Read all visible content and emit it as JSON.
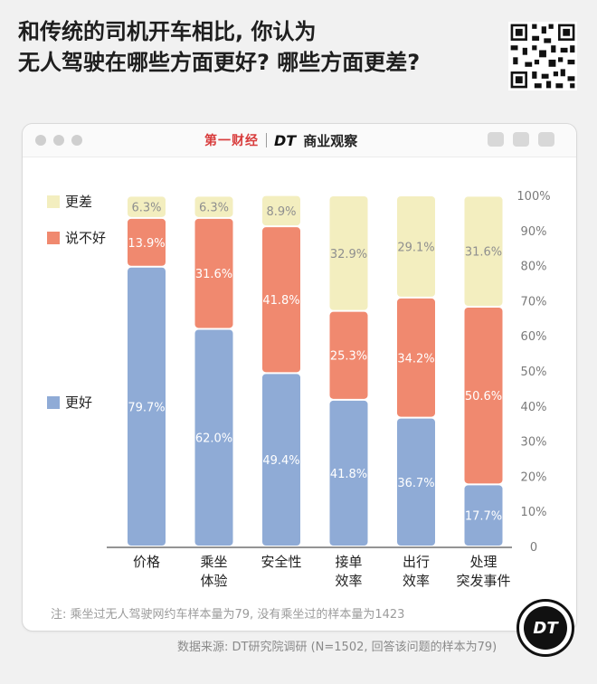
{
  "title_line1": "和传统的司机开车相比, 你认为",
  "title_line2": "无人驾驶在哪些方面更好? 哪些方面更差?",
  "brand": {
    "left": "第一财经",
    "dt": "DT",
    "name": "商业观察"
  },
  "footnote": "注: 乘坐过无人驾驶网约车样本量为79, 没有乘坐过的样本量为1423",
  "source": "数据来源: DT研究院调研 (N=1502, 回答该问题的样本为79)",
  "logo_text": "DT",
  "colors": {
    "better": "#8fabd6",
    "neutral": "#f0896f",
    "worse": "#f3eebf",
    "label": "#ffffff",
    "worse_label": "#8f8f8f"
  },
  "chart_data": {
    "type": "bar",
    "stacked": true,
    "categories": [
      [
        "价格"
      ],
      [
        "乘坐",
        "体验"
      ],
      [
        "安全性"
      ],
      [
        "接单",
        "效率"
      ],
      [
        "出行",
        "效率"
      ],
      [
        "处理",
        "突发事件"
      ]
    ],
    "series": [
      {
        "name": "更好",
        "values": [
          79.7,
          62.0,
          49.4,
          41.8,
          36.7,
          17.7
        ]
      },
      {
        "name": "说不好",
        "values": [
          13.9,
          31.6,
          41.8,
          25.3,
          34.2,
          50.6
        ]
      },
      {
        "name": "更差",
        "values": [
          6.3,
          6.3,
          8.9,
          32.9,
          29.1,
          31.6
        ]
      }
    ],
    "ylim": [
      0,
      100
    ],
    "yticks": [
      "0",
      "10%",
      "20%",
      "30%",
      "40%",
      "50%",
      "60%",
      "70%",
      "80%",
      "90%",
      "100%"
    ],
    "value_format": "%",
    "legend": "left"
  }
}
